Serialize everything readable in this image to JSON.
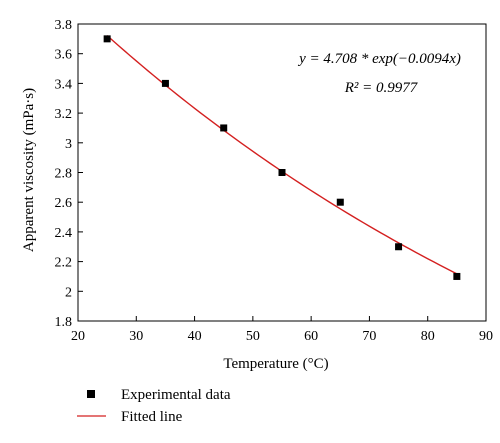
{
  "chart_data": {
    "type": "scatter",
    "xlabel": "Temperature (°C)",
    "ylabel": "Apparent viscosity (mPa·s)",
    "xlim": [
      20,
      90
    ],
    "ylim": [
      1.8,
      3.8
    ],
    "x_ticks": [
      20,
      30,
      40,
      50,
      60,
      70,
      80,
      90
    ],
    "x_tick_labels": [
      "20",
      "30",
      "40",
      "50",
      "60",
      "70",
      "80",
      "90"
    ],
    "y_ticks": [
      1.8,
      2.0,
      2.2,
      2.4,
      2.6,
      2.8,
      3.0,
      3.2,
      3.4,
      3.6,
      3.8
    ],
    "y_tick_labels": [
      "1.8",
      "2",
      "2.2",
      "2.4",
      "2.6",
      "2.8",
      "3",
      "3.2",
      "3.4",
      "3.6",
      "3.8"
    ],
    "grid": false,
    "legend_position": "bottom-left, below plot",
    "series": [
      {
        "name": "Experimental data",
        "kind": "scatter",
        "marker": "square",
        "color": "#000000",
        "x": [
          25,
          35,
          45,
          55,
          65,
          75,
          85
        ],
        "y": [
          3.7,
          3.4,
          3.1,
          2.8,
          2.6,
          2.3,
          2.1
        ]
      },
      {
        "name": "Fitted line",
        "kind": "line",
        "color": "#d42020",
        "x_range": [
          25,
          85
        ],
        "model": {
          "a": 4.708,
          "b": -0.0094
        }
      }
    ],
    "annotations": {
      "equation": "y = 4.708 * exp(−0.0094x)",
      "r_squared": "R² = 0.9977"
    }
  }
}
